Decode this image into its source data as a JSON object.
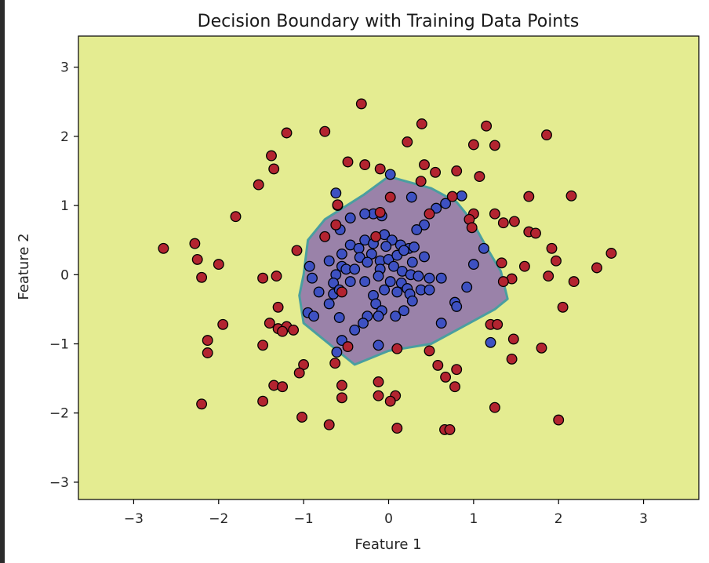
{
  "chart_data": {
    "type": "scatter",
    "title": "Decision Boundary with Training Data Points",
    "xlabel": "Feature 1",
    "ylabel": "Feature 2",
    "xlim": [
      -3.65,
      3.65
    ],
    "ylim": [
      -3.25,
      3.45
    ],
    "xticks": [
      -3,
      -2,
      -1,
      0,
      1,
      2,
      3
    ],
    "yticks": [
      -3,
      -2,
      -1,
      0,
      1,
      2,
      3
    ],
    "xtick_labels": [
      "−3",
      "−2",
      "−1",
      "0",
      "1",
      "2",
      "3"
    ],
    "ytick_labels": [
      "−3",
      "−2",
      "−1",
      "0",
      "1",
      "2",
      "3"
    ],
    "grid": false,
    "colors": {
      "background_region": "#e4ec91",
      "inner_region": "#9a82a9",
      "boundary": "#4a9ea0",
      "class_0": "#3e51c2",
      "class_1": "#b32430",
      "edge": "#000000"
    },
    "decision_region": [
      [
        -0.75,
        0.8
      ],
      [
        -0.3,
        1.15
      ],
      [
        0.0,
        1.42
      ],
      [
        0.5,
        1.25
      ],
      [
        0.8,
        1.05
      ],
      [
        0.98,
        0.78
      ],
      [
        1.15,
        0.4
      ],
      [
        1.32,
        0.05
      ],
      [
        1.4,
        -0.35
      ],
      [
        1.25,
        -0.5
      ],
      [
        0.8,
        -0.8
      ],
      [
        0.5,
        -1.0
      ],
      [
        0.0,
        -1.1
      ],
      [
        -0.4,
        -1.3
      ],
      [
        -0.55,
        -1.15
      ],
      [
        -0.72,
        -0.98
      ],
      [
        -1.0,
        -0.7
      ],
      [
        -1.05,
        -0.3
      ],
      [
        -1.0,
        0.0
      ],
      [
        -0.95,
        0.5
      ]
    ],
    "series": [
      {
        "class": 0,
        "points": [
          [
            0.02,
            1.45
          ],
          [
            0.27,
            1.12
          ],
          [
            0.86,
            1.14
          ],
          [
            0.67,
            1.03
          ],
          [
            -0.62,
            1.18
          ],
          [
            -0.6,
            1.0
          ],
          [
            0.56,
            0.96
          ],
          [
            -0.08,
            0.85
          ],
          [
            -0.18,
            0.88
          ],
          [
            -0.28,
            0.88
          ],
          [
            0.42,
            0.72
          ],
          [
            0.33,
            0.65
          ],
          [
            -0.45,
            0.82
          ],
          [
            -0.57,
            0.65
          ],
          [
            -0.05,
            0.58
          ],
          [
            0.04,
            0.5
          ],
          [
            -0.28,
            0.5
          ],
          [
            -0.18,
            0.45
          ],
          [
            -0.45,
            0.43
          ],
          [
            -0.03,
            0.41
          ],
          [
            0.14,
            0.43
          ],
          [
            0.24,
            0.38
          ],
          [
            0.3,
            0.4
          ],
          [
            -0.55,
            0.3
          ],
          [
            -0.35,
            0.38
          ],
          [
            -0.7,
            0.2
          ],
          [
            -0.55,
            0.12
          ],
          [
            -0.34,
            0.25
          ],
          [
            -0.2,
            0.3
          ],
          [
            -0.1,
            0.2
          ],
          [
            0.0,
            0.22
          ],
          [
            0.1,
            0.28
          ],
          [
            0.18,
            0.35
          ],
          [
            0.28,
            0.18
          ],
          [
            0.42,
            0.26
          ],
          [
            1.12,
            0.38
          ],
          [
            1.0,
            0.15
          ],
          [
            -0.93,
            0.12
          ],
          [
            -0.62,
            0.0
          ],
          [
            -0.5,
            0.08
          ],
          [
            -0.4,
            0.08
          ],
          [
            -0.25,
            0.18
          ],
          [
            -0.1,
            0.08
          ],
          [
            0.06,
            0.12
          ],
          [
            0.16,
            0.05
          ],
          [
            0.26,
            0.0
          ],
          [
            0.35,
            -0.02
          ],
          [
            0.48,
            -0.05
          ],
          [
            0.62,
            -0.05
          ],
          [
            -0.9,
            -0.05
          ],
          [
            -0.65,
            -0.12
          ],
          [
            -0.45,
            -0.1
          ],
          [
            -0.28,
            -0.1
          ],
          [
            -0.12,
            -0.02
          ],
          [
            0.02,
            -0.1
          ],
          [
            0.15,
            -0.12
          ],
          [
            0.22,
            -0.2
          ],
          [
            0.38,
            -0.22
          ],
          [
            0.48,
            -0.22
          ],
          [
            0.92,
            -0.18
          ],
          [
            -0.82,
            -0.25
          ],
          [
            -0.65,
            -0.28
          ],
          [
            -0.58,
            -0.22
          ],
          [
            -0.18,
            -0.3
          ],
          [
            -0.05,
            -0.22
          ],
          [
            0.1,
            -0.25
          ],
          [
            0.25,
            -0.28
          ],
          [
            0.28,
            -0.38
          ],
          [
            0.78,
            -0.4
          ],
          [
            0.8,
            -0.46
          ],
          [
            -0.7,
            -0.42
          ],
          [
            -0.15,
            -0.42
          ],
          [
            -0.08,
            -0.52
          ],
          [
            -0.12,
            -0.6
          ],
          [
            -0.25,
            -0.6
          ],
          [
            0.08,
            -0.6
          ],
          [
            0.18,
            -0.52
          ],
          [
            -0.95,
            -0.55
          ],
          [
            -0.88,
            -0.6
          ],
          [
            -0.58,
            -0.62
          ],
          [
            -0.3,
            -0.7
          ],
          [
            -0.4,
            -0.8
          ],
          [
            0.62,
            -0.7
          ],
          [
            -0.55,
            -0.95
          ],
          [
            -0.61,
            -1.12
          ],
          [
            -0.12,
            -1.02
          ],
          [
            1.2,
            -0.98
          ]
        ]
      },
      {
        "class": 1,
        "points": [
          [
            -0.32,
            2.47
          ],
          [
            0.39,
            2.18
          ],
          [
            1.15,
            2.15
          ],
          [
            -1.2,
            2.05
          ],
          [
            -0.75,
            2.07
          ],
          [
            1.86,
            2.02
          ],
          [
            0.22,
            1.92
          ],
          [
            1.0,
            1.88
          ],
          [
            1.25,
            1.87
          ],
          [
            -1.38,
            1.72
          ],
          [
            -0.48,
            1.63
          ],
          [
            -0.28,
            1.59
          ],
          [
            0.42,
            1.59
          ],
          [
            -0.1,
            1.53
          ],
          [
            -1.35,
            1.53
          ],
          [
            0.55,
            1.48
          ],
          [
            0.8,
            1.5
          ],
          [
            1.07,
            1.42
          ],
          [
            0.38,
            1.35
          ],
          [
            -1.53,
            1.3
          ],
          [
            0.02,
            1.12
          ],
          [
            1.65,
            1.13
          ],
          [
            2.15,
            1.14
          ],
          [
            0.75,
            1.13
          ],
          [
            -0.6,
            1.01
          ],
          [
            1.0,
            0.88
          ],
          [
            1.25,
            0.88
          ],
          [
            -1.8,
            0.84
          ],
          [
            0.48,
            0.88
          ],
          [
            0.95,
            0.8
          ],
          [
            -0.1,
            0.9
          ],
          [
            1.35,
            0.75
          ],
          [
            1.48,
            0.77
          ],
          [
            -0.62,
            0.72
          ],
          [
            0.98,
            0.68
          ],
          [
            1.65,
            0.62
          ],
          [
            1.73,
            0.6
          ],
          [
            -0.75,
            0.55
          ],
          [
            -0.15,
            0.55
          ],
          [
            -2.65,
            0.38
          ],
          [
            -2.28,
            0.45
          ],
          [
            -1.08,
            0.35
          ],
          [
            1.92,
            0.38
          ],
          [
            2.62,
            0.31
          ],
          [
            -2.25,
            0.22
          ],
          [
            1.97,
            0.2
          ],
          [
            -2.0,
            0.15
          ],
          [
            1.33,
            0.17
          ],
          [
            1.6,
            0.12
          ],
          [
            2.45,
            0.1
          ],
          [
            -2.2,
            -0.04
          ],
          [
            -1.48,
            -0.05
          ],
          [
            -1.32,
            -0.02
          ],
          [
            1.88,
            -0.02
          ],
          [
            1.45,
            -0.06
          ],
          [
            2.18,
            -0.1
          ],
          [
            1.35,
            -0.1
          ],
          [
            -0.55,
            -0.25
          ],
          [
            2.05,
            -0.47
          ],
          [
            -1.3,
            -0.47
          ],
          [
            -1.95,
            -0.72
          ],
          [
            -1.4,
            -0.7
          ],
          [
            -1.3,
            -0.78
          ],
          [
            -1.2,
            -0.75
          ],
          [
            -1.12,
            -0.8
          ],
          [
            -1.25,
            -0.82
          ],
          [
            1.2,
            -0.72
          ],
          [
            1.28,
            -0.72
          ],
          [
            -2.13,
            -0.95
          ],
          [
            -1.48,
            -1.02
          ],
          [
            1.47,
            -0.93
          ],
          [
            -0.48,
            -1.04
          ],
          [
            0.1,
            -1.07
          ],
          [
            0.48,
            -1.1
          ],
          [
            1.8,
            -1.06
          ],
          [
            -2.13,
            -1.13
          ],
          [
            1.45,
            -1.22
          ],
          [
            -0.63,
            -1.28
          ],
          [
            -1.0,
            -1.3
          ],
          [
            0.58,
            -1.31
          ],
          [
            -1.05,
            -1.42
          ],
          [
            0.8,
            -1.37
          ],
          [
            0.67,
            -1.48
          ],
          [
            -1.35,
            -1.6
          ],
          [
            -1.25,
            -1.62
          ],
          [
            -0.55,
            -1.6
          ],
          [
            0.78,
            -1.62
          ],
          [
            -0.12,
            -1.55
          ],
          [
            -0.12,
            -1.75
          ],
          [
            0.08,
            -1.75
          ],
          [
            -0.55,
            -1.78
          ],
          [
            0.02,
            -1.83
          ],
          [
            -1.48,
            -1.83
          ],
          [
            -2.2,
            -1.87
          ],
          [
            1.25,
            -1.92
          ],
          [
            -1.02,
            -2.06
          ],
          [
            -0.7,
            -2.17
          ],
          [
            2.0,
            -2.1
          ],
          [
            0.1,
            -2.22
          ],
          [
            0.66,
            -2.24
          ],
          [
            0.72,
            -2.24
          ]
        ]
      }
    ]
  }
}
